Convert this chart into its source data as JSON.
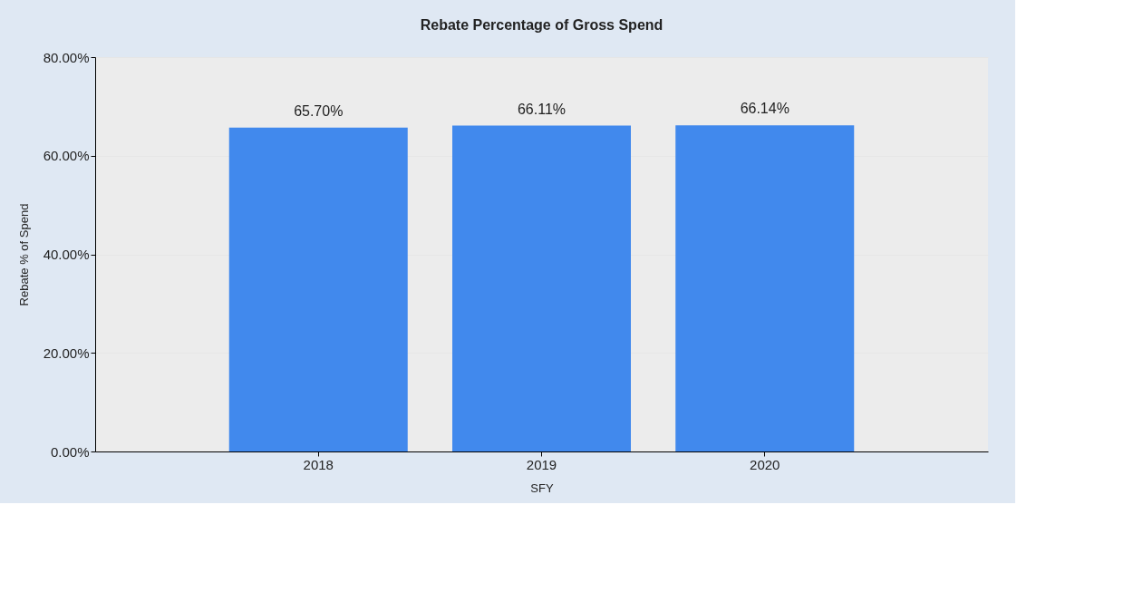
{
  "chart_data": {
    "type": "bar",
    "title": "Rebate Percentage of Gross Spend",
    "xlabel": "SFY",
    "ylabel": "Rebate % of Spend",
    "categories": [
      "2018",
      "2019",
      "2020"
    ],
    "values": [
      65.7,
      66.11,
      66.14
    ],
    "color": "#4189ed",
    "value_labels": [
      "65.70%",
      "66.11%",
      "66.14%"
    ],
    "ylim": [
      0,
      80
    ],
    "yticks": [
      {
        "value": 0,
        "label": "0.00%"
      },
      {
        "value": 20,
        "label": "20.00%"
      },
      {
        "value": 40,
        "label": "40.00%"
      },
      {
        "value": 60,
        "label": "60.00%"
      },
      {
        "value": 80,
        "label": "80.00%"
      }
    ],
    "grid": "y"
  }
}
